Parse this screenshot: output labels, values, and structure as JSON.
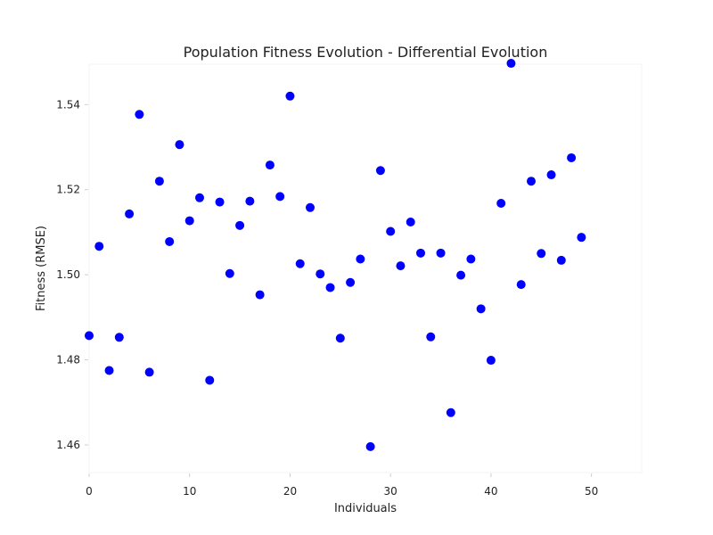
{
  "chart_data": {
    "type": "scatter",
    "title": "Population Fitness Evolution - Differential Evolution",
    "xlabel": "Individuals",
    "ylabel": "Fitness (RMSE)",
    "xlim": [
      0,
      55
    ],
    "ylim": [
      1.4535,
      1.5495
    ],
    "xticks": [
      0,
      10,
      20,
      30,
      40,
      50
    ],
    "yticks": [
      1.46,
      1.48,
      1.5,
      1.52,
      1.54
    ],
    "ytick_labels": [
      "1.46",
      "1.48",
      "1.50",
      "1.52",
      "1.54"
    ],
    "grid": false,
    "marker_color": "#0000ff",
    "series": [
      {
        "x": [
          0,
          1,
          2,
          3,
          4,
          5,
          6,
          7,
          8,
          9,
          10,
          11,
          12,
          13,
          14,
          15,
          16,
          17,
          18,
          19,
          20,
          21,
          22,
          23,
          24,
          25,
          26,
          27,
          28,
          29,
          30,
          31,
          32,
          33,
          34,
          35,
          36,
          37,
          38,
          39,
          40,
          41,
          42,
          43,
          44,
          45,
          46,
          47,
          48,
          49
        ],
        "values": [
          1.4857,
          1.5067,
          1.4775,
          1.4853,
          1.5143,
          1.5377,
          1.4771,
          1.522,
          1.5078,
          1.5306,
          1.5127,
          1.5181,
          1.4752,
          1.5171,
          1.5003,
          1.5116,
          1.5173,
          1.4953,
          1.5258,
          1.5184,
          1.542,
          1.5026,
          1.5158,
          1.5002,
          1.497,
          1.4851,
          1.4982,
          1.5037,
          1.4596,
          1.5245,
          1.5102,
          1.5021,
          1.5124,
          1.5051,
          1.4854,
          1.5051,
          1.4676,
          1.4999,
          1.5037,
          1.492,
          1.4799,
          1.5168,
          1.5497,
          1.4977,
          1.522,
          1.505,
          1.5235,
          1.5034,
          1.5275,
          1.5088
        ]
      }
    ]
  }
}
